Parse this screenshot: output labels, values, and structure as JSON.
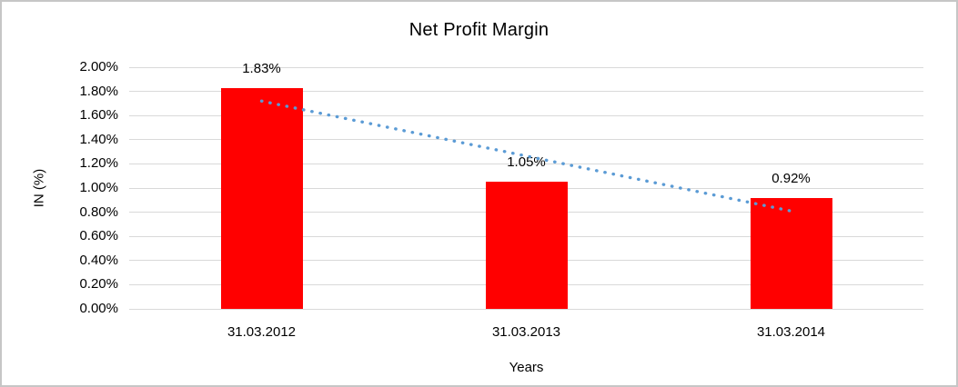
{
  "chart_data": {
    "type": "bar",
    "title": "Net Profit Margin",
    "xlabel": "Years",
    "ylabel": "IN (%)",
    "categories": [
      "31.03.2012",
      "31.03.2013",
      "31.03.2014"
    ],
    "values": [
      1.83,
      1.05,
      0.92
    ],
    "data_labels": [
      "1.83%",
      "1.05%",
      "0.92%"
    ],
    "y_ticks": [
      "2.00%",
      "1.80%",
      "1.60%",
      "1.40%",
      "1.20%",
      "1.00%",
      "0.80%",
      "0.60%",
      "0.40%",
      "0.20%",
      "0.00%"
    ],
    "ylim": [
      0,
      2.0
    ],
    "grid": true,
    "legend": false,
    "bar_color": "#ff0000",
    "gridline_color": "#d9d9d9",
    "trendline": {
      "style": "dotted",
      "color": "#5b9bd5",
      "start_value": 1.72,
      "end_value": 0.81
    }
  }
}
